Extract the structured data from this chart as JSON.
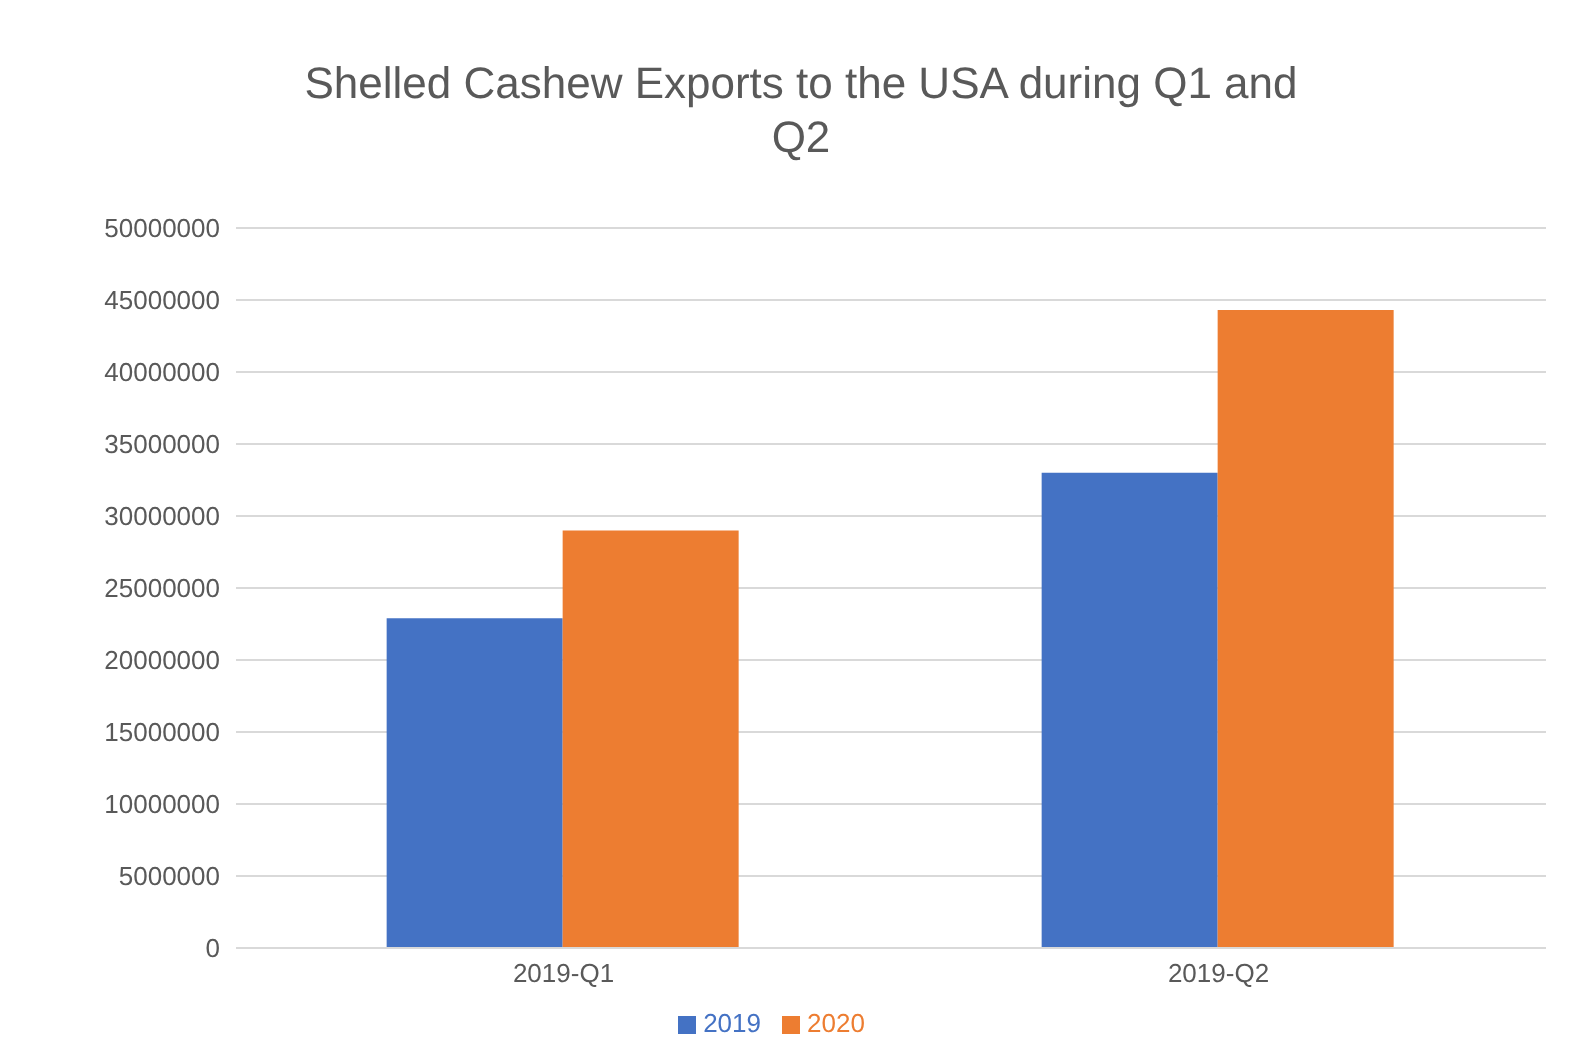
{
  "chart_data": {
    "type": "bar",
    "title": "Shelled Cashew Exports to the USA during Q1 and Q2",
    "categories": [
      "2019-Q1",
      "2019-Q2"
    ],
    "series": [
      {
        "name": "2019",
        "color": "#4472c4",
        "values": [
          22900000,
          33000000
        ]
      },
      {
        "name": "2020",
        "color": "#ed7d31",
        "values": [
          29000000,
          44300000
        ]
      }
    ],
    "ylim": [
      0,
      50000000
    ],
    "yticks": [
      0,
      5000000,
      10000000,
      15000000,
      20000000,
      25000000,
      30000000,
      35000000,
      40000000,
      45000000,
      50000000
    ],
    "grid": "y",
    "legend": "bottom"
  }
}
